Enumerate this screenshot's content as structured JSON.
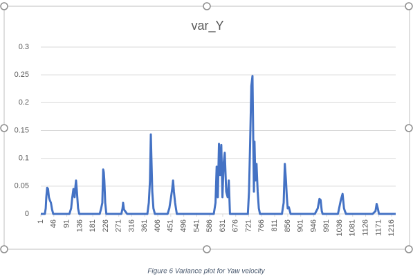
{
  "chart_data": {
    "type": "line",
    "title": "var_Y",
    "x": [
      1,
      15,
      18,
      20,
      23,
      26,
      29,
      32,
      36,
      40,
      44,
      100,
      106,
      110,
      114,
      118,
      121,
      123,
      126,
      130,
      134,
      205,
      210,
      214,
      217,
      219,
      221,
      224,
      228,
      280,
      284,
      286,
      289,
      293,
      300,
      370,
      375,
      379,
      382,
      384,
      387,
      391,
      396,
      440,
      446,
      452,
      456,
      459,
      462,
      466,
      472,
      600,
      606,
      610,
      614,
      618,
      622,
      626,
      630,
      634,
      638,
      643,
      648,
      652,
      656,
      700,
      718,
      722,
      726,
      730,
      734,
      737,
      739,
      741,
      744,
      748,
      752,
      756,
      760,
      790,
      836,
      842,
      846,
      850,
      853,
      856,
      860,
      866,
      950,
      960,
      966,
      970,
      974,
      977,
      1030,
      1040,
      1046,
      1051,
      1054,
      1058,
      1150,
      1160,
      1164,
      1168,
      1172,
      1230
    ],
    "series": [
      {
        "name": "var_Y",
        "color": "#4472c4",
        "values": [
          0,
          0,
          0.01,
          0.03,
          0.047,
          0.045,
          0.03,
          0.025,
          0.02,
          0.008,
          0,
          0,
          0.01,
          0.03,
          0.045,
          0.03,
          0.05,
          0.06,
          0.04,
          0.01,
          0,
          0,
          0.01,
          0.02,
          0.08,
          0.075,
          0.06,
          0.02,
          0,
          0,
          0.01,
          0.02,
          0.008,
          0.005,
          0,
          0,
          0.02,
          0.06,
          0.143,
          0.1,
          0.04,
          0.01,
          0,
          0,
          0.01,
          0.03,
          0.045,
          0.06,
          0.04,
          0.02,
          0,
          0,
          0.02,
          0.085,
          0.03,
          0.126,
          0.07,
          0.124,
          0.03,
          0.09,
          0.11,
          0.04,
          0.03,
          0.06,
          0,
          0,
          0,
          0.04,
          0.13,
          0.23,
          0.248,
          0.12,
          0.04,
          0.13,
          0.06,
          0.09,
          0.04,
          0.01,
          0,
          0,
          0,
          0.02,
          0.09,
          0.06,
          0.03,
          0.01,
          0.012,
          0,
          0,
          0.01,
          0.027,
          0.025,
          0.005,
          0,
          0,
          0.025,
          0.036,
          0.01,
          0.005,
          0,
          0,
          0.005,
          0.018,
          0.01,
          0,
          0
        ]
      }
    ],
    "xlim": [
      1,
      1230
    ],
    "xticks": [
      1,
      46,
      91,
      136,
      181,
      226,
      271,
      316,
      361,
      406,
      451,
      496,
      541,
      586,
      631,
      676,
      721,
      766,
      811,
      856,
      901,
      946,
      991,
      1036,
      1081,
      1126,
      1171,
      1216
    ],
    "ylim": [
      0,
      0.3
    ],
    "yticks": [
      0,
      0.05,
      0.1,
      0.15,
      0.2,
      0.25,
      0.3
    ],
    "grid": true
  },
  "caption": "Figure 6 Variance plot for Yaw velocity"
}
